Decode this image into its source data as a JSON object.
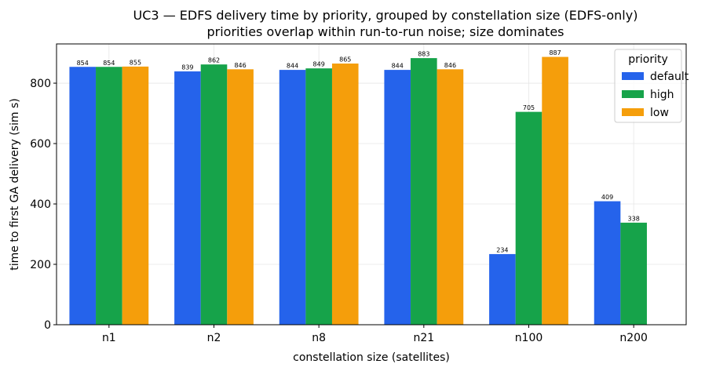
{
  "chart_data": {
    "type": "bar",
    "title": "UC3 — EDFS delivery time by priority, grouped by constellation size (EDFS-only)",
    "subtitle": "priorities overlap within run-to-run noise; size dominates",
    "xlabel": "constellation size (satellites)",
    "ylabel": "time to first GA delivery (sim s)",
    "categories": [
      "n1",
      "n2",
      "n8",
      "n21",
      "n100",
      "n200"
    ],
    "series": [
      {
        "name": "default",
        "color": "#2563eb",
        "values": [
          854,
          839,
          844,
          844,
          234,
          409
        ]
      },
      {
        "name": "high",
        "color": "#16a34a",
        "values": [
          854,
          862,
          849,
          883,
          705,
          338
        ]
      },
      {
        "name": "low",
        "color": "#f59e0b",
        "values": [
          855,
          846,
          865,
          846,
          887,
          null
        ]
      }
    ],
    "ylim": [
      0,
      930
    ],
    "yticks": [
      0,
      200,
      400,
      600,
      800
    ],
    "grid": true,
    "legend": {
      "title": "priority",
      "placement": "top-right"
    }
  }
}
